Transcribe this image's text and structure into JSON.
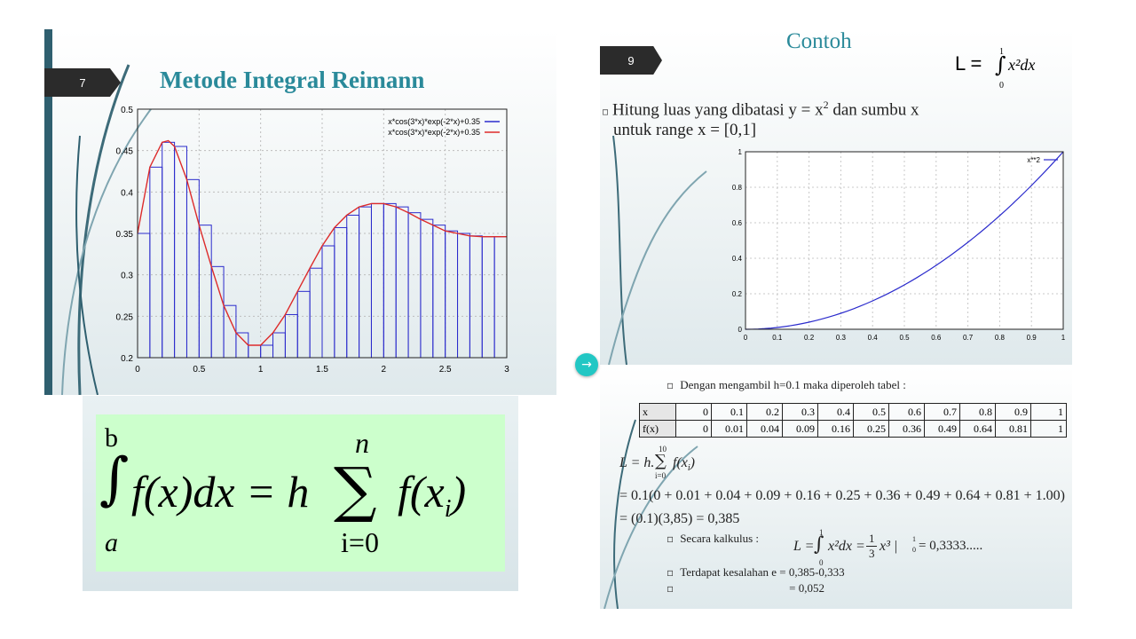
{
  "slide7": {
    "number": "7",
    "title": "Metode Integral Reimann",
    "chart_data": {
      "type": "bar",
      "title": "",
      "xlim": [
        0,
        3
      ],
      "ylim": [
        0.2,
        0.5
      ],
      "x_ticks": [
        "0",
        "0.5",
        "1",
        "1.5",
        "2",
        "2.5",
        "3"
      ],
      "y_ticks": [
        "0.2",
        "0.25",
        "0.3",
        "0.35",
        "0.4",
        "0.45",
        "0.5"
      ],
      "grid": true,
      "legend_position": "top-right",
      "series": [
        {
          "name": "x*cos(3*x)*exp(-2*x)+0.35",
          "kind": "bars",
          "color": "#2b2bcc"
        },
        {
          "name": "x*cos(3*x)*exp(-2*x)+0.35",
          "kind": "line",
          "color": "#dd2b2b"
        }
      ],
      "bar_width": 0.1,
      "bar_lefts": [
        0,
        0.1,
        0.2,
        0.3,
        0.4,
        0.5,
        0.6,
        0.7,
        0.8,
        0.9,
        1.0,
        1.1,
        1.2,
        1.3,
        1.4,
        1.5,
        1.6,
        1.7,
        1.8,
        1.9,
        2.0,
        2.1,
        2.2,
        2.3,
        2.4,
        2.5,
        2.6,
        2.7,
        2.8,
        2.9
      ],
      "bar_values": [
        0.35,
        0.43,
        0.46,
        0.455,
        0.415,
        0.36,
        0.31,
        0.263,
        0.23,
        0.215,
        0.215,
        0.23,
        0.252,
        0.28,
        0.308,
        0.335,
        0.357,
        0.372,
        0.382,
        0.386,
        0.386,
        0.382,
        0.375,
        0.367,
        0.36,
        0.353,
        0.35,
        0.347,
        0.346,
        0.346
      ],
      "line_x": [
        0,
        0.1,
        0.2,
        0.25,
        0.3,
        0.4,
        0.5,
        0.6,
        0.7,
        0.8,
        0.9,
        1.0,
        1.1,
        1.2,
        1.3,
        1.4,
        1.5,
        1.6,
        1.7,
        1.8,
        1.9,
        2.0,
        2.1,
        2.2,
        2.3,
        2.4,
        2.5,
        2.6,
        2.7,
        2.8,
        2.9,
        3.0
      ],
      "line_y": [
        0.35,
        0.43,
        0.46,
        0.462,
        0.455,
        0.415,
        0.36,
        0.31,
        0.263,
        0.23,
        0.215,
        0.215,
        0.23,
        0.252,
        0.28,
        0.308,
        0.335,
        0.357,
        0.372,
        0.382,
        0.386,
        0.386,
        0.382,
        0.375,
        0.367,
        0.36,
        0.353,
        0.35,
        0.347,
        0.346,
        0.346,
        0.346
      ]
    },
    "formula": {
      "upper": "b",
      "lower": "a",
      "integral": "∫",
      "body": "f(x)dx = h",
      "sum_upper": "n",
      "sum_sign": "∑",
      "sum_lower": "i=0",
      "tail": "f(x",
      "tail_sub": "i",
      "tail_end": ")"
    }
  },
  "slide9": {
    "number": "9",
    "title": "Contoh",
    "formula_top": {
      "L": "L =",
      "upper": "1",
      "lower": "0",
      "body": "x²dx"
    },
    "line1": "Hitung luas yang dibatasi y = x",
    "line1_sup": "2",
    "line1_end": " dan sumbu x",
    "line2": "untuk range x = [0,1]",
    "chart_data": {
      "type": "line",
      "title": "",
      "xlim": [
        0,
        1
      ],
      "ylim": [
        0,
        1
      ],
      "x_ticks": [
        "0",
        "0.1",
        "0.2",
        "0.3",
        "0.4",
        "0.5",
        "0.6",
        "0.7",
        "0.8",
        "0.9",
        "1"
      ],
      "y_ticks": [
        "0",
        "0.2",
        "0.4",
        "0.6",
        "0.8",
        "1"
      ],
      "grid": true,
      "legend_position": "top-right",
      "series": [
        {
          "name": "x**2",
          "color": "#2b2bcc",
          "x": [
            0,
            0.1,
            0.2,
            0.3,
            0.4,
            0.5,
            0.6,
            0.7,
            0.8,
            0.9,
            1.0
          ],
          "y": [
            0,
            0.01,
            0.04,
            0.09,
            0.16,
            0.25,
            0.36,
            0.49,
            0.64,
            0.81,
            1.0
          ]
        }
      ]
    },
    "lower": {
      "intro": "Dengan mengambil h=0.1 maka diperoleh tabel :",
      "table": {
        "row_x_label": "x",
        "row_fx_label": "f(x)",
        "x": [
          "0",
          "0.1",
          "0.2",
          "0.3",
          "0.4",
          "0.5",
          "0.6",
          "0.7",
          "0.8",
          "0.9",
          "1"
        ],
        "fx": [
          "0",
          "0.01",
          "0.04",
          "0.09",
          "0.16",
          "0.25",
          "0.36",
          "0.49",
          "0.64",
          "0.81",
          "1"
        ]
      },
      "eq1_left": "L = h.",
      "eq1_sum_upper": "10",
      "eq1_sum_lower": "i=0",
      "eq1_right": "f(x",
      "eq1_sub": "i",
      "eq1_end": ")",
      "eq2": "= 0.1(0 + 0.01 + 0.04 + 0.09 + 0.16 + 0.25 + 0.36 + 0.49 + 0.64 + 0.81 + 1.00)",
      "eq3": "= (0.1)(3,85) = 0,385",
      "kalkulus_label": "Secara  kalkulus :",
      "kalkulus_eq_left": "L =",
      "kalkulus_upper": "1",
      "kalkulus_lower": "0",
      "kalkulus_eq_body": "x²dx =",
      "kalkulus_frac_num": "1",
      "kalkulus_frac_den": "3",
      "kalkulus_eq_tail": "x³ |",
      "kalkulus_bar_upper": "1",
      "kalkulus_bar_lower": "0",
      "kalkulus_eq_result": "= 0,3333.....",
      "error_line": "Terdapat kesalahan e = 0,385-0,333",
      "error_value": "= 0,052"
    }
  },
  "navigation": {
    "next_icon": "arrow-right-icon",
    "accent": "#22c7c4"
  },
  "colors": {
    "title": "#2a8a9a",
    "formula_bg": "#ccffcc",
    "bars": "#2b2bcc",
    "curve": "#dd2b2b"
  }
}
